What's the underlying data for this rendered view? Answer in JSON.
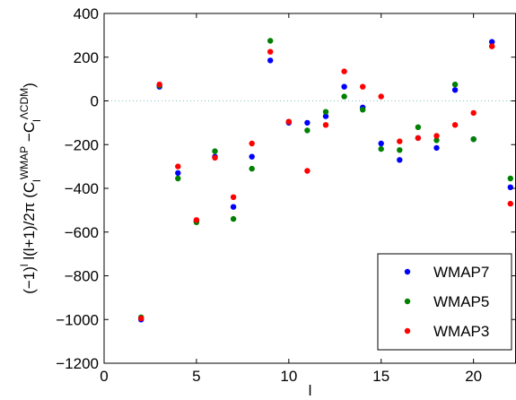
{
  "chart_data": {
    "type": "scatter",
    "title": "",
    "xlabel": "l",
    "ylabel": {
      "prefix": "(−1)",
      "prefix_sup": "l",
      "middle": " l(l+1)/2π (C",
      "c1_sub": "l",
      "c1_sup": "WMAP",
      "minus": " −C",
      "c2_sub": "l",
      "c2_sup": "ΛCDM",
      "close": ")"
    },
    "xlim": [
      0,
      22.3
    ],
    "ylim": [
      -1200,
      400
    ],
    "xticks": [
      0,
      5,
      10,
      15,
      20
    ],
    "yticks": [
      -1200,
      -1000,
      -800,
      -600,
      -400,
      -200,
      0,
      200,
      400
    ],
    "reference_line": {
      "y": 0,
      "style": "dotted",
      "color": "#7fbfbf"
    },
    "grid": false,
    "legend_position": "bottom-right",
    "series": [
      {
        "name": "WMAP7",
        "color": "#0000ff",
        "points": [
          [
            2,
            -1000
          ],
          [
            3,
            65
          ],
          [
            4,
            -330
          ],
          [
            5,
            -550
          ],
          [
            6,
            -255
          ],
          [
            7,
            -485
          ],
          [
            8,
            -255
          ],
          [
            9,
            185
          ],
          [
            10,
            -100
          ],
          [
            11,
            -100
          ],
          [
            12,
            -70
          ],
          [
            13,
            65
          ],
          [
            14,
            -30
          ],
          [
            15,
            -195
          ],
          [
            16,
            -270
          ],
          [
            17,
            -170
          ],
          [
            18,
            -215
          ],
          [
            19,
            50
          ],
          [
            20,
            -175
          ],
          [
            21,
            270
          ],
          [
            22,
            -395
          ]
        ]
      },
      {
        "name": "WMAP5",
        "color": "#008000",
        "points": [
          [
            2,
            -990
          ],
          [
            3,
            70
          ],
          [
            4,
            -355
          ],
          [
            5,
            -555
          ],
          [
            6,
            -230
          ],
          [
            7,
            -540
          ],
          [
            8,
            -310
          ],
          [
            9,
            275
          ],
          [
            10,
            -95
          ],
          [
            11,
            -135
          ],
          [
            12,
            -50
          ],
          [
            13,
            20
          ],
          [
            14,
            -40
          ],
          [
            15,
            -220
          ],
          [
            16,
            -225
          ],
          [
            17,
            -120
          ],
          [
            18,
            -180
          ],
          [
            19,
            75
          ],
          [
            20,
            -175
          ],
          [
            21,
            250
          ],
          [
            22,
            -355
          ]
        ]
      },
      {
        "name": "WMAP3",
        "color": "#ff0000",
        "points": [
          [
            2,
            -995
          ],
          [
            3,
            75
          ],
          [
            4,
            -300
          ],
          [
            5,
            -545
          ],
          [
            6,
            -260
          ],
          [
            7,
            -440
          ],
          [
            8,
            -195
          ],
          [
            9,
            225
          ],
          [
            10,
            -95
          ],
          [
            11,
            -320
          ],
          [
            12,
            -110
          ],
          [
            13,
            135
          ],
          [
            14,
            65
          ],
          [
            15,
            20
          ],
          [
            16,
            -185
          ],
          [
            17,
            -170
          ],
          [
            18,
            -160
          ],
          [
            19,
            -110
          ],
          [
            20,
            -55
          ],
          [
            21,
            250
          ],
          [
            22,
            -470
          ]
        ]
      }
    ]
  }
}
